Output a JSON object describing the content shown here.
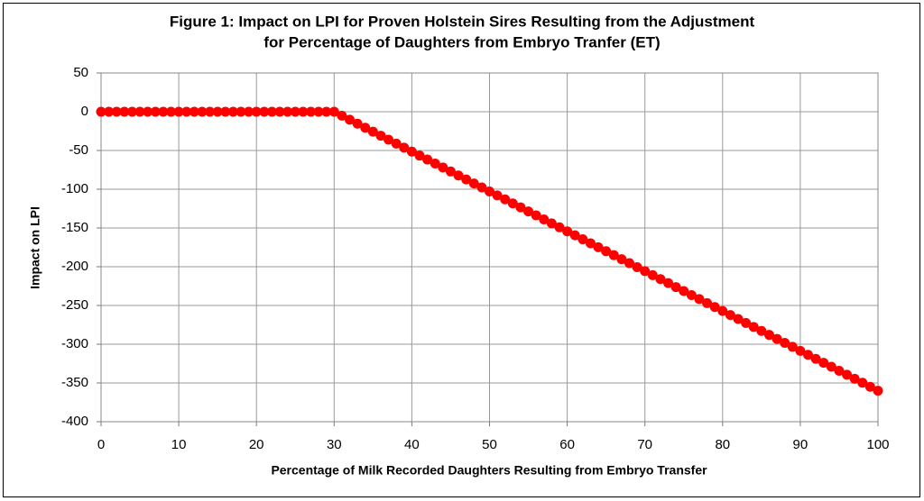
{
  "chart_data": {
    "type": "line",
    "title": [
      "Figure 1: Impact on LPI for Proven Holstein Sires Resulting from the Adjustment",
      "for Percentage of Daughters from Embryo Tranfer (ET)"
    ],
    "x_label": "Percentage of Milk Recorded Daughters Resulting from Embryo Transfer",
    "y_label": "Impact on LPI",
    "x": [
      0,
      1,
      2,
      3,
      4,
      5,
      6,
      7,
      8,
      9,
      10,
      11,
      12,
      13,
      14,
      15,
      16,
      17,
      18,
      19,
      20,
      21,
      22,
      23,
      24,
      25,
      26,
      27,
      28,
      29,
      30,
      31,
      32,
      33,
      34,
      35,
      36,
      37,
      38,
      39,
      40,
      41,
      42,
      43,
      44,
      45,
      46,
      47,
      48,
      49,
      50,
      51,
      52,
      53,
      54,
      55,
      56,
      57,
      58,
      59,
      60,
      61,
      62,
      63,
      64,
      65,
      66,
      67,
      68,
      69,
      70,
      71,
      72,
      73,
      74,
      75,
      76,
      77,
      78,
      79,
      80,
      81,
      82,
      83,
      84,
      85,
      86,
      87,
      88,
      89,
      90,
      91,
      92,
      93,
      94,
      95,
      96,
      97,
      98,
      99,
      100
    ],
    "series": [
      {
        "color": "#ff0000",
        "values": [
          0,
          0,
          0,
          0,
          0,
          0,
          0,
          0,
          0,
          0,
          0,
          0,
          0,
          0,
          0,
          0,
          0,
          0,
          0,
          0,
          0,
          0,
          0,
          0,
          0,
          0,
          0,
          0,
          0,
          0,
          0,
          -5.1,
          -10.3,
          -15.4,
          -20.6,
          -25.7,
          -30.9,
          -36,
          -41.1,
          -46.3,
          -51.4,
          -56.6,
          -61.7,
          -66.9,
          -72,
          -77.1,
          -82.3,
          -87.4,
          -92.6,
          -97.7,
          -102.9,
          -108,
          -113.1,
          -118.3,
          -123.4,
          -128.6,
          -133.7,
          -138.9,
          -144,
          -149.1,
          -154.3,
          -159.4,
          -164.6,
          -169.7,
          -174.9,
          -180,
          -185.1,
          -190.3,
          -195.4,
          -200.6,
          -205.7,
          -210.9,
          -216,
          -221.1,
          -226.3,
          -231.4,
          -236.6,
          -241.7,
          -246.9,
          -252,
          -257.1,
          -262.3,
          -267.4,
          -272.6,
          -277.7,
          -282.9,
          -288,
          -293.1,
          -298.3,
          -303.4,
          -308.6,
          -313.7,
          -318.9,
          -324,
          -329.1,
          -334.3,
          -339.4,
          -344.6,
          -349.7,
          -354.9,
          -360
        ]
      }
    ],
    "xlim": [
      0,
      100
    ],
    "xticks": [
      0,
      10,
      20,
      30,
      40,
      50,
      60,
      70,
      80,
      90,
      100
    ],
    "ylim": [
      -400,
      50
    ],
    "yticks": [
      50,
      0,
      -50,
      -100,
      -150,
      -200,
      -250,
      -300,
      -350,
      -400
    ],
    "grid": true
  }
}
